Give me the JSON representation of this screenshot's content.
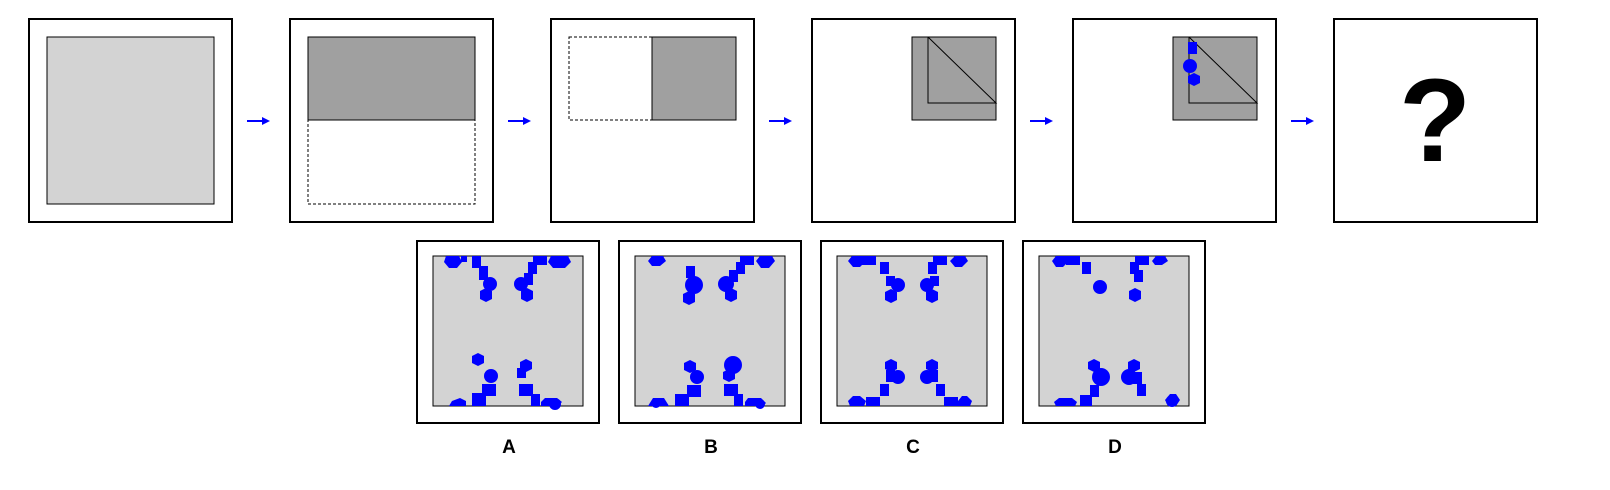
{
  "puzzle": {
    "question_mark": "?",
    "options": [
      {
        "label": "A"
      },
      {
        "label": "B"
      },
      {
        "label": "C"
      },
      {
        "label": "D"
      }
    ]
  },
  "colors": {
    "paper": "#d3d3d3",
    "folded": "#a0a0a0",
    "hole": "#0000ff",
    "arrow": "#0000ff",
    "frame": "#000000"
  }
}
